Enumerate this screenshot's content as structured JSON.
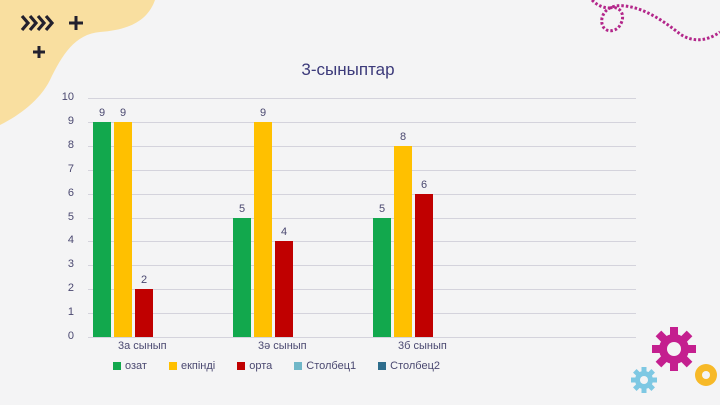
{
  "slide": {
    "background": "#f4f4f5",
    "decorations": {
      "top_left_blob_color": "#f9dfa0",
      "chevrons": "››››",
      "plus": "+",
      "dotted_line_color": "#b3268a",
      "gear_large_color": "#c41f8f",
      "gear_small_color": "#7ec8e3",
      "gear_ring_color": "#f7b928"
    }
  },
  "chart_data": {
    "type": "bar",
    "title": "3-сыныптар",
    "categories": [
      "3а сынып",
      "3ә сынып",
      "3б сынып"
    ],
    "series": [
      {
        "name": "озат",
        "color": "#12a84d",
        "values": [
          9,
          5,
          5
        ]
      },
      {
        "name": "екпінді",
        "color": "#ffc000",
        "values": [
          9,
          9,
          8
        ]
      },
      {
        "name": "орта",
        "color": "#c00000",
        "values": [
          2,
          4,
          6
        ]
      },
      {
        "name": "Столбец1",
        "color": "#70b7c8",
        "values": [
          null,
          null,
          null
        ]
      },
      {
        "name": "Столбец2",
        "color": "#2e6d8c",
        "values": [
          null,
          null,
          null
        ]
      }
    ],
    "xlabel": "",
    "ylabel": "",
    "ylim": [
      0,
      10
    ],
    "yticks": [
      0,
      1,
      2,
      3,
      4,
      5,
      6,
      7,
      8,
      9,
      10
    ],
    "grid": true,
    "data_labels": true,
    "legend_position": "bottom"
  }
}
